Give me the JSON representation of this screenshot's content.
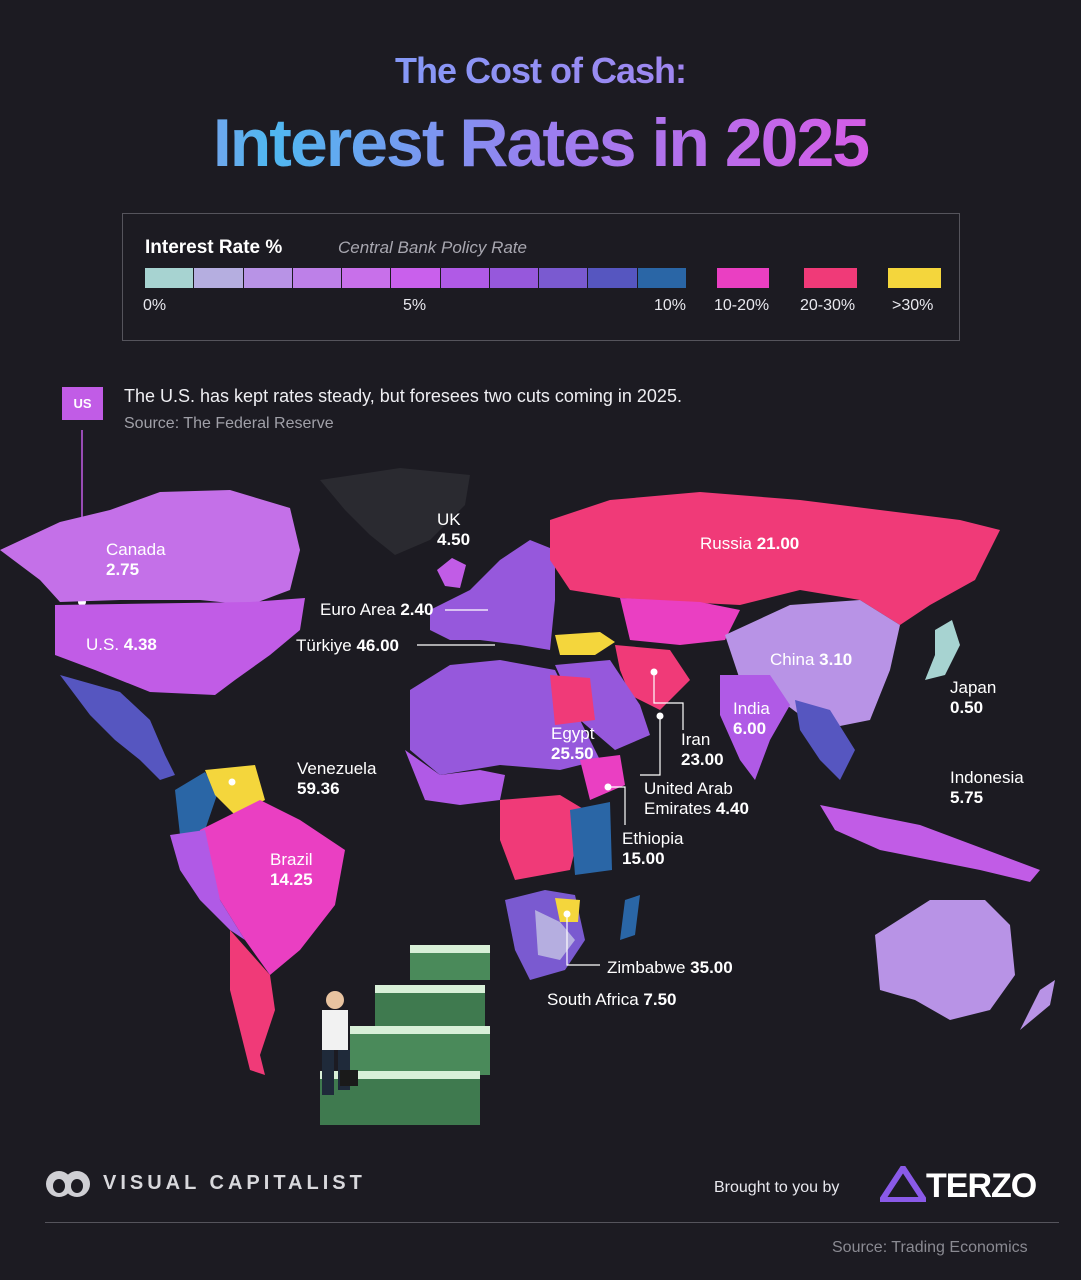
{
  "title": {
    "line1": "The Cost of Cash:",
    "line2": "Interest Rates in 2025"
  },
  "legend": {
    "title": "Interest Rate %",
    "subtitle": "Central Bank Policy Rate",
    "gradient_colors": [
      "#a7d3d1",
      "#b5aee0",
      "#b893e6",
      "#bd80e8",
      "#c870ea",
      "#c960ec",
      "#b05ae6",
      "#9658dc",
      "#7a5ad0",
      "#5656c0",
      "#2a66a6"
    ],
    "ticks": [
      "0%",
      "5%",
      "10%"
    ],
    "buckets": [
      {
        "label": "10-20%",
        "color": "#ea3fc2"
      },
      {
        "label": "20-30%",
        "color": "#f03a78"
      },
      {
        "label": ">30%",
        "color": "#f4d63c"
      }
    ]
  },
  "callout": {
    "badge": "US",
    "text": "The U.S. has kept rates steady, but foresees two cuts coming in 2025.",
    "source": "Source: The Federal Reserve"
  },
  "countries": [
    {
      "name": "Canada",
      "rate": "2.75"
    },
    {
      "name": "UK",
      "rate": "4.50"
    },
    {
      "name": "U.S.",
      "rate": "4.38"
    },
    {
      "name": "Euro Area",
      "rate": "2.40"
    },
    {
      "name": "Türkiye",
      "rate": "46.00"
    },
    {
      "name": "Russia",
      "rate": "21.00"
    },
    {
      "name": "China",
      "rate": "3.10"
    },
    {
      "name": "Japan",
      "rate": "0.50"
    },
    {
      "name": "India",
      "rate": "6.00"
    },
    {
      "name": "Egypt",
      "rate": "25.50"
    },
    {
      "name": "Iran",
      "rate": "23.00"
    },
    {
      "name": "United Arab",
      "name2": "Emirates",
      "rate": "4.40"
    },
    {
      "name": "Ethiopia",
      "rate": "15.00"
    },
    {
      "name": "Venezuela",
      "rate": "59.36"
    },
    {
      "name": "Indonesia",
      "rate": "5.75"
    },
    {
      "name": "Brazil",
      "rate": "14.25"
    },
    {
      "name": "Zimbabwe",
      "rate": "35.00"
    },
    {
      "name": "South Africa",
      "rate": "7.50"
    }
  ],
  "footer": {
    "brand": "VISUAL CAPITALIST",
    "brought_by": "Brought to you by",
    "sponsor": "TERZO",
    "source": "Source: Trading Economics"
  }
}
